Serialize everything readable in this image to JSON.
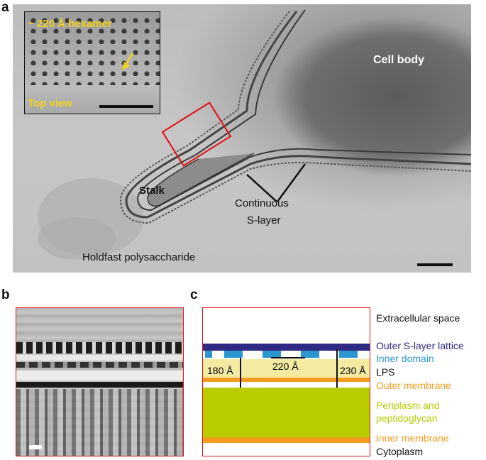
{
  "panels": {
    "a": {
      "letter": "a",
      "inset": {
        "title": "~ 220 Å hexamer",
        "caption": "Top view"
      },
      "labels": {
        "cell_body": "Cell body",
        "stalk": "Stalk",
        "continuous_1": "Continuous",
        "continuous_2": "S-layer",
        "holdfast": "Holdfast polysaccharide"
      }
    },
    "b": {
      "letter": "b"
    },
    "c": {
      "letter": "c",
      "measurements": {
        "left": "180 Å",
        "middle": "220 Å",
        "right": "230 Å"
      },
      "legend": {
        "extracellular": "Extracellular space",
        "outer_slayer": "Outer S-layer lattice",
        "inner_domain": "Inner domain",
        "lps": "LPS",
        "outer_membrane": "Outer membrane",
        "periplasm_1": "Periplasm and",
        "periplasm_2": "peptidoglycan",
        "inner_membrane": "Inner membrane",
        "cytoplasm": "Cytoplasm"
      },
      "colors": {
        "outer_slayer": "#2e2a85",
        "inner_domain": "#2a97d0",
        "lps": "#f3eba2",
        "outer_membrane": "#f39c1f",
        "periplasm": "#b8cc00",
        "inner_membrane": "#f39c1f",
        "black_text": "#111111"
      }
    }
  }
}
